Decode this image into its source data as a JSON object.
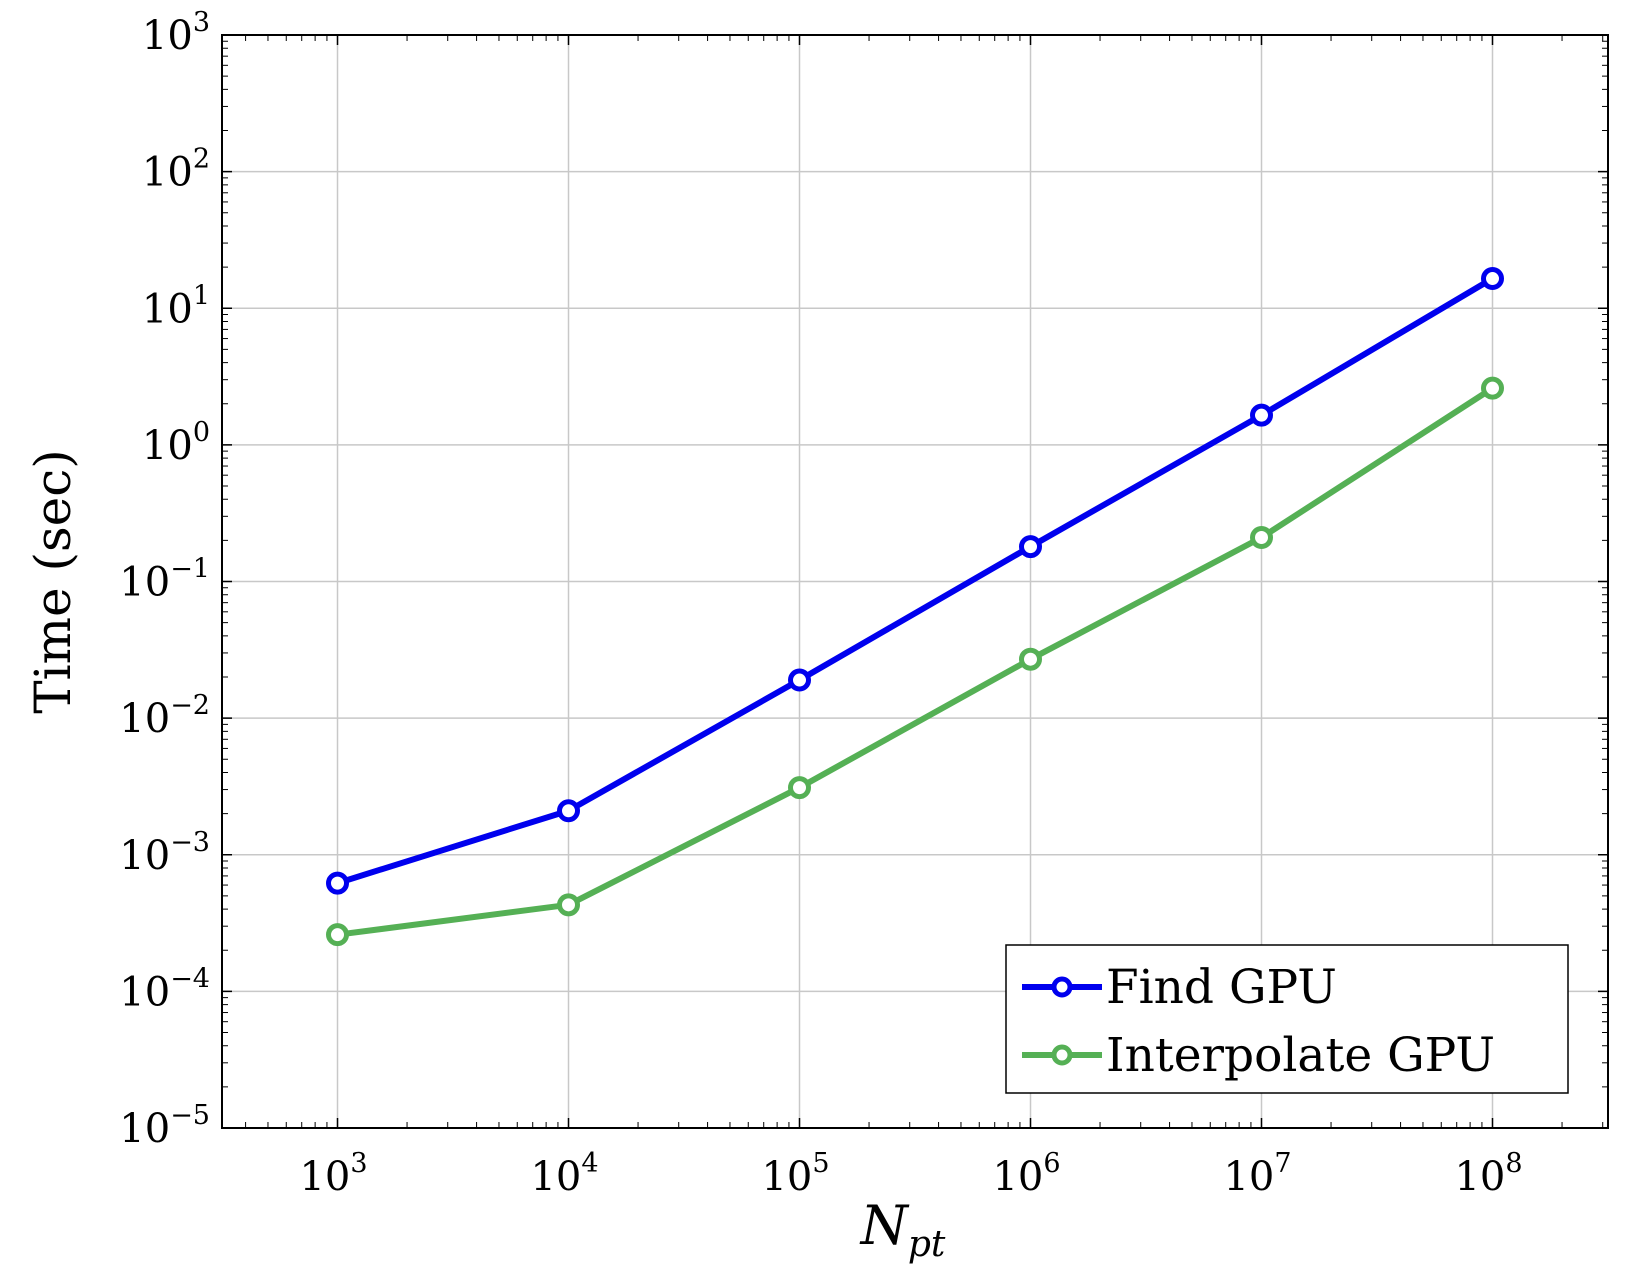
{
  "chart_data": {
    "type": "line",
    "xscale": "log",
    "yscale": "log",
    "xlim": [
      316.2,
      316227800.0
    ],
    "ylim": [
      1e-05,
      1000
    ],
    "x_ticks": [
      1000,
      10000,
      100000,
      1000000,
      10000000,
      100000000
    ],
    "y_ticks": [
      1e-05,
      0.0001,
      0.001,
      0.01,
      0.1,
      1,
      10,
      100,
      1000
    ],
    "x_tick_labels": [
      {
        "base": "10",
        "exp": "3"
      },
      {
        "base": "10",
        "exp": "4"
      },
      {
        "base": "10",
        "exp": "5"
      },
      {
        "base": "10",
        "exp": "6"
      },
      {
        "base": "10",
        "exp": "7"
      },
      {
        "base": "10",
        "exp": "8"
      }
    ],
    "y_tick_labels": [
      {
        "base": "10",
        "exp": "−5"
      },
      {
        "base": "10",
        "exp": "−4"
      },
      {
        "base": "10",
        "exp": "−3"
      },
      {
        "base": "10",
        "exp": "−2"
      },
      {
        "base": "10",
        "exp": "−1"
      },
      {
        "base": "10",
        "exp": "0"
      },
      {
        "base": "10",
        "exp": "1"
      },
      {
        "base": "10",
        "exp": "2"
      },
      {
        "base": "10",
        "exp": "3"
      }
    ],
    "xlabel": {
      "main": "N",
      "sub": "pt"
    },
    "ylabel": "Time (sec)",
    "grid": true,
    "legend_position": "bottom-right",
    "series": [
      {
        "name": "Find GPU",
        "color": "#0000ee",
        "marker": "circle",
        "x": [
          1000,
          10000,
          100000,
          1000000,
          10000000,
          100000000
        ],
        "y": [
          0.00062,
          0.0021,
          0.019,
          0.18,
          1.65,
          16.5
        ]
      },
      {
        "name": "Interpolate GPU",
        "color": "#55b055",
        "marker": "circle",
        "x": [
          1000,
          10000,
          100000,
          1000000,
          10000000,
          100000000
        ],
        "y": [
          0.00026,
          0.00043,
          0.0031,
          0.027,
          0.21,
          2.6
        ]
      }
    ]
  }
}
